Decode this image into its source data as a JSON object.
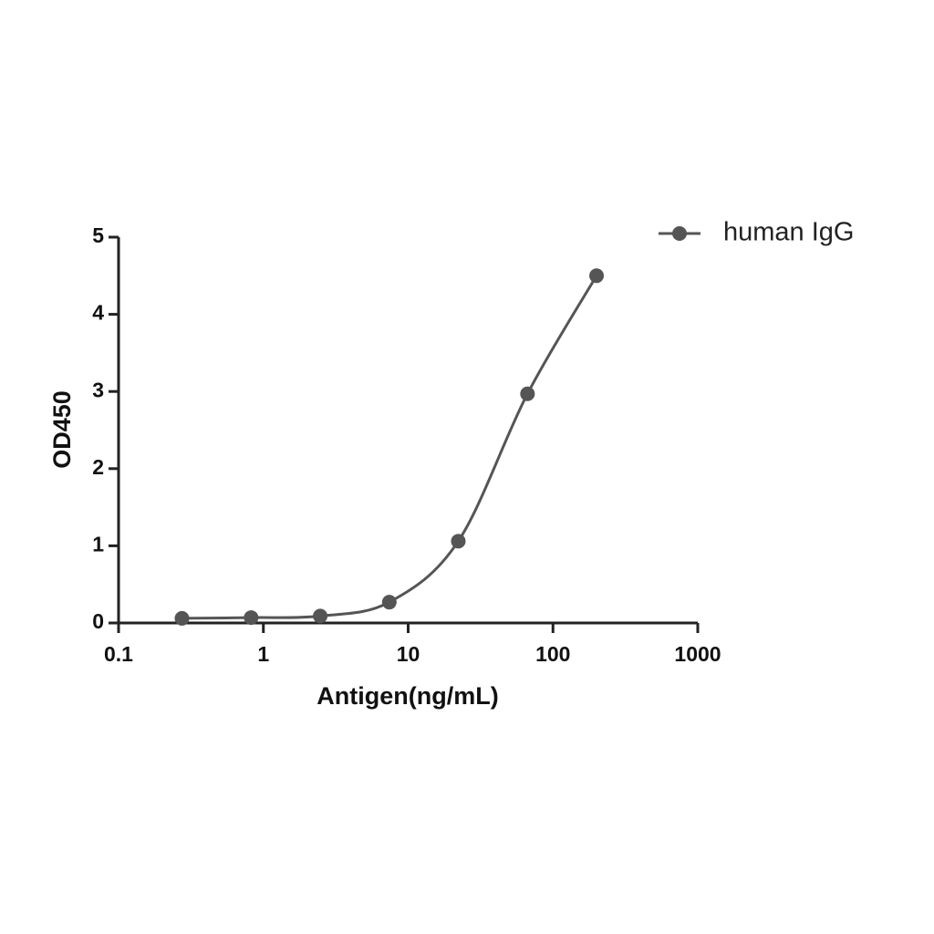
{
  "chart_data": {
    "type": "scatter-line",
    "x_label": "Antigen(ng/mL)",
    "y_label": "OD450",
    "x": [
      0.274,
      0.823,
      2.47,
      7.41,
      22.2,
      66.7,
      200
    ],
    "series": [
      {
        "name": "human IgG",
        "color": "#555555",
        "values": [
          0.06,
          0.07,
          0.09,
          0.27,
          1.06,
          2.97,
          4.5
        ]
      }
    ],
    "xscale": "log",
    "xlim": [
      0.1,
      1000
    ],
    "xticks": [
      0.1,
      1,
      10,
      100,
      1000
    ],
    "ylim": [
      0,
      5
    ],
    "yticks": [
      0,
      1,
      2,
      3,
      4,
      5
    ],
    "grid": false,
    "legend": "top-right"
  }
}
